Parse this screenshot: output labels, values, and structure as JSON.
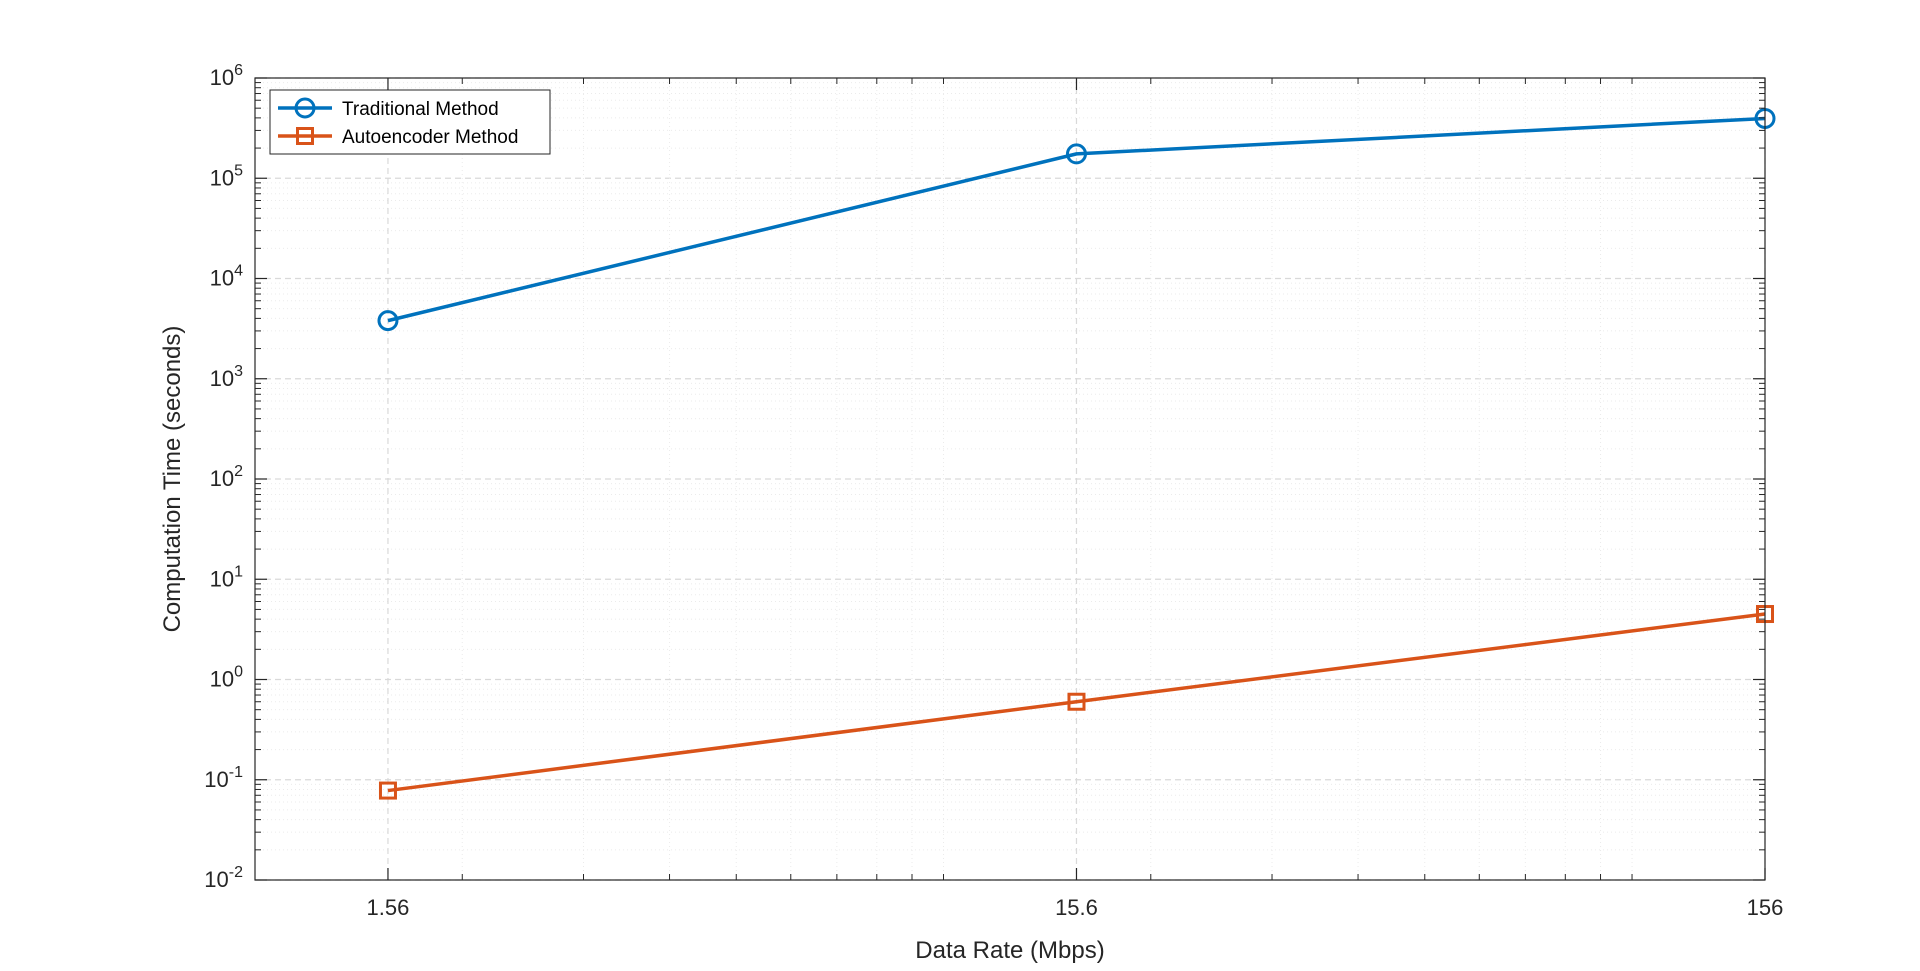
{
  "chart_data": {
    "type": "line",
    "title": "",
    "xlabel": "Data Rate (Mbps)",
    "ylabel": "Computation Time (seconds)",
    "x_scale": "log",
    "y_scale": "log",
    "x": [
      1.56,
      15.6,
      156
    ],
    "x_tick_labels": [
      "1.56",
      "15.6",
      "156"
    ],
    "y_ticks": [
      {
        "base": "10",
        "exp": "-2"
      },
      {
        "base": "10",
        "exp": "-1"
      },
      {
        "base": "10",
        "exp": "0"
      },
      {
        "base": "10",
        "exp": "1"
      },
      {
        "base": "10",
        "exp": "2"
      },
      {
        "base": "10",
        "exp": "3"
      },
      {
        "base": "10",
        "exp": "4"
      },
      {
        "base": "10",
        "exp": "5"
      },
      {
        "base": "10",
        "exp": "6"
      }
    ],
    "xlim": [
      1.0,
      156
    ],
    "ylim": [
      0.01,
      1000000
    ],
    "grid": true,
    "legend_location": "top-left",
    "series": [
      {
        "name": "Traditional Method",
        "marker": "circle",
        "color": "#0072BD",
        "values": [
          3800,
          175000,
          395000
        ]
      },
      {
        "name": "Autoencoder Method",
        "marker": "square",
        "color": "#D95319",
        "values": [
          0.078,
          0.6,
          4.5
        ]
      }
    ]
  }
}
